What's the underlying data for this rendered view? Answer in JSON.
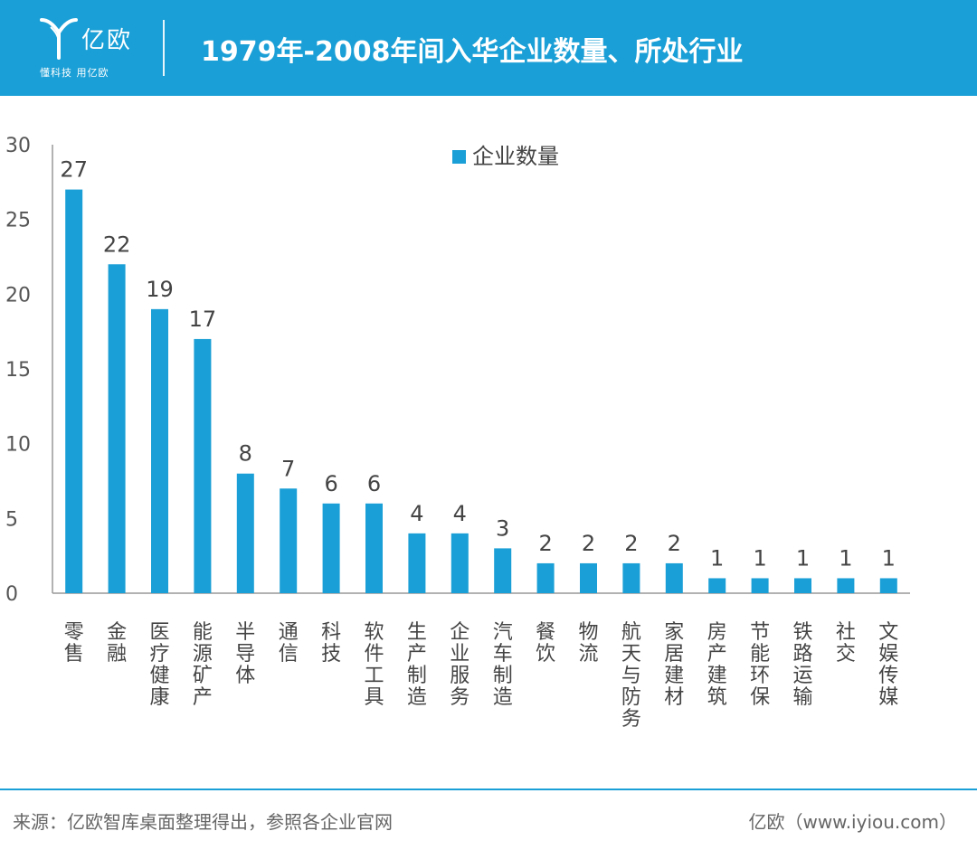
{
  "header": {
    "logo_name": "亿欧",
    "logo_slogan": "懂科技 用亿欧",
    "title": "1979年-2008年间入华企业数量、所处行业",
    "brand_color": "#1a9fd6"
  },
  "chart_data": {
    "type": "bar",
    "categories": [
      "零售",
      "金融",
      "医疗健康",
      "能源矿产",
      "半导体",
      "通信",
      "科技",
      "软件工具",
      "生产制造",
      "企业服务",
      "汽车制造",
      "餐饮",
      "物流",
      "航天与防务",
      "家居建材",
      "房产建筑",
      "节能环保",
      "铁路运输",
      "社交",
      "文娱传媒"
    ],
    "series": [
      {
        "name": "企业数量",
        "values": [
          27,
          22,
          19,
          17,
          8,
          7,
          6,
          6,
          4,
          4,
          3,
          2,
          2,
          2,
          2,
          1,
          1,
          1,
          1,
          1
        ],
        "color": "#1a9fd6"
      }
    ],
    "ylim": [
      0,
      30
    ],
    "yticks": [
      0,
      5,
      10,
      15,
      20,
      25,
      30
    ],
    "data_labels": true,
    "grid": false,
    "legend_position": "top-center"
  },
  "footer": {
    "source": "来源：亿欧智库桌面整理得出，参照各企业官网",
    "credit": "亿欧（www.iyiou.com）"
  }
}
